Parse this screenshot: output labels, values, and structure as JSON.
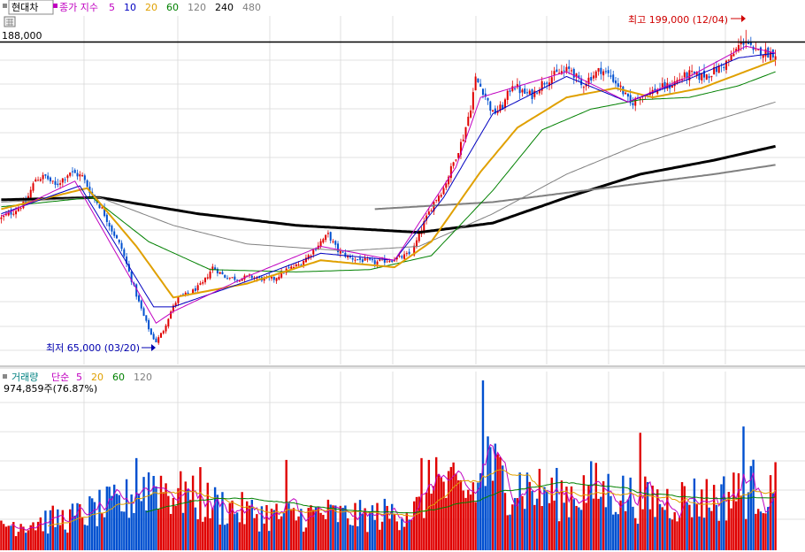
{
  "price_panel": {
    "sym_label": "현대차",
    "ma_title": "종가 지수",
    "ma_periods": [
      {
        "label": "5",
        "color": "#c000c0"
      },
      {
        "label": "10",
        "color": "#0000c0"
      },
      {
        "label": "20",
        "color": "#e0a000"
      },
      {
        "label": "60",
        "color": "#008000"
      },
      {
        "label": "120",
        "color": "#808080"
      },
      {
        "label": "240",
        "color": "#000000"
      },
      {
        "label": "480",
        "color": "#808080"
      }
    ],
    "level_label": "188,000",
    "high_label": "최고 199,000 (12/04)",
    "low_label": "최저 65,000 (03/20)"
  },
  "volume_panel": {
    "title": "거래량",
    "ma_title": "단순",
    "ma_periods": [
      {
        "label": "5",
        "color": "#c000c0"
      },
      {
        "label": "20",
        "color": "#e0a000"
      },
      {
        "label": "60",
        "color": "#008000"
      },
      {
        "label": "120",
        "color": "#808080"
      }
    ],
    "last_label": "974,859주(76.87%)"
  },
  "colors": {
    "up": "#e00000",
    "down": "#0050d0",
    "grid": "#d8d8d8"
  },
  "chart_data": {
    "type": "candlestick",
    "price_level": 188000,
    "high": {
      "value": 199000,
      "date": "12/04"
    },
    "low": {
      "value": 65000,
      "date": "03/20"
    },
    "price_ylim": [
      56000,
      205000
    ],
    "close_path": [
      [
        0,
        118000
      ],
      [
        5,
        121000
      ],
      [
        10,
        125000
      ],
      [
        14,
        135000
      ],
      [
        18,
        136000
      ],
      [
        22,
        132000
      ],
      [
        28,
        138000
      ],
      [
        33,
        136000
      ],
      [
        37,
        128000
      ],
      [
        41,
        122000
      ],
      [
        45,
        113000
      ],
      [
        49,
        105000
      ],
      [
        52,
        95000
      ],
      [
        55,
        85000
      ],
      [
        58,
        76000
      ],
      [
        61,
        68000
      ],
      [
        63,
        65000
      ],
      [
        66,
        70000
      ],
      [
        69,
        78000
      ],
      [
        72,
        84000
      ],
      [
        77,
        86000
      ],
      [
        82,
        90000
      ],
      [
        86,
        97000
      ],
      [
        91,
        93000
      ],
      [
        96,
        92000
      ],
      [
        101,
        93000
      ],
      [
        106,
        92000
      ],
      [
        111,
        92000
      ],
      [
        116,
        96000
      ],
      [
        121,
        98000
      ],
      [
        126,
        103000
      ],
      [
        130,
        108000
      ],
      [
        133,
        111000
      ],
      [
        137,
        104000
      ],
      [
        142,
        101000
      ],
      [
        147,
        100000
      ],
      [
        152,
        99000
      ],
      [
        157,
        100000
      ],
      [
        162,
        101000
      ],
      [
        167,
        103000
      ],
      [
        172,
        116000
      ],
      [
        176,
        125000
      ],
      [
        180,
        131000
      ],
      [
        184,
        142000
      ],
      [
        188,
        153000
      ],
      [
        191,
        166000
      ],
      [
        193,
        178000
      ],
      [
        196,
        173000
      ],
      [
        200,
        163000
      ],
      [
        204,
        166000
      ],
      [
        208,
        176000
      ],
      [
        212,
        172000
      ],
      [
        216,
        171000
      ],
      [
        220,
        176000
      ],
      [
        224,
        179000
      ],
      [
        228,
        181000
      ],
      [
        232,
        182000
      ],
      [
        236,
        175000
      ],
      [
        240,
        179000
      ],
      [
        244,
        182000
      ],
      [
        248,
        179000
      ],
      [
        252,
        174000
      ],
      [
        256,
        167000
      ],
      [
        260,
        171000
      ],
      [
        264,
        172000
      ],
      [
        268,
        174000
      ],
      [
        272,
        175000
      ],
      [
        276,
        178000
      ],
      [
        280,
        180000
      ],
      [
        284,
        179000
      ],
      [
        288,
        180000
      ],
      [
        291,
        182000
      ],
      [
        294,
        184000
      ],
      [
        297,
        187000
      ],
      [
        300,
        192000
      ],
      [
        303,
        195000
      ],
      [
        306,
        189000
      ],
      [
        309,
        190000
      ],
      [
        312,
        189000
      ],
      [
        315,
        189000
      ]
    ],
    "moving_averages": [
      {
        "period": 240,
        "values": [
          [
            0,
            126000
          ],
          [
            40,
            127000
          ],
          [
            80,
            120000
          ],
          [
            120,
            115000
          ],
          [
            170,
            112000
          ],
          [
            200,
            116000
          ],
          [
            230,
            127000
          ],
          [
            260,
            137000
          ],
          [
            290,
            143000
          ],
          [
            315,
            149000
          ]
        ]
      },
      {
        "period": 480,
        "values": [
          [
            152,
            122000
          ],
          [
            200,
            125000
          ],
          [
            230,
            129000
          ],
          [
            260,
            133000
          ],
          [
            290,
            137000
          ],
          [
            315,
            141000
          ]
        ]
      },
      {
        "period": 120,
        "values": [
          [
            0,
            125000
          ],
          [
            40,
            127000
          ],
          [
            70,
            115000
          ],
          [
            100,
            107000
          ],
          [
            140,
            104000
          ],
          [
            170,
            106000
          ],
          [
            200,
            120000
          ],
          [
            230,
            137000
          ],
          [
            260,
            150000
          ],
          [
            290,
            160000
          ],
          [
            315,
            168000
          ]
        ]
      },
      {
        "period": 60,
        "values": [
          [
            0,
            123000
          ],
          [
            37,
            127000
          ],
          [
            60,
            108000
          ],
          [
            85,
            96000
          ],
          [
            120,
            95000
          ],
          [
            150,
            96000
          ],
          [
            175,
            102000
          ],
          [
            200,
            130000
          ],
          [
            220,
            156000
          ],
          [
            240,
            165000
          ],
          [
            260,
            169000
          ],
          [
            280,
            170000
          ],
          [
            300,
            175000
          ],
          [
            315,
            181000
          ]
        ]
      },
      {
        "period": 20,
        "values": [
          [
            0,
            122000
          ],
          [
            35,
            131000
          ],
          [
            55,
            106000
          ],
          [
            70,
            84000
          ],
          [
            100,
            90000
          ],
          [
            130,
            100000
          ],
          [
            160,
            97000
          ],
          [
            175,
            108000
          ],
          [
            195,
            138000
          ],
          [
            210,
            157000
          ],
          [
            230,
            170000
          ],
          [
            250,
            174000
          ],
          [
            265,
            170000
          ],
          [
            285,
            174000
          ],
          [
            300,
            180000
          ],
          [
            315,
            186000
          ]
        ]
      },
      {
        "period": 10,
        "values": [
          [
            0,
            120000
          ],
          [
            32,
            132000
          ],
          [
            62,
            80000
          ],
          [
            70,
            80000
          ],
          [
            100,
            91000
          ],
          [
            130,
            103000
          ],
          [
            160,
            100000
          ],
          [
            180,
            127000
          ],
          [
            200,
            163000
          ],
          [
            230,
            179000
          ],
          [
            255,
            168000
          ],
          [
            280,
            178000
          ],
          [
            300,
            187000
          ],
          [
            315,
            189000
          ]
        ]
      },
      {
        "period": 5,
        "values": [
          [
            0,
            119000
          ],
          [
            30,
            134000
          ],
          [
            63,
            73000
          ],
          [
            70,
            78000
          ],
          [
            100,
            93000
          ],
          [
            130,
            106000
          ],
          [
            160,
            100000
          ],
          [
            185,
            140000
          ],
          [
            195,
            170000
          ],
          [
            230,
            181000
          ],
          [
            255,
            168000
          ],
          [
            280,
            179000
          ],
          [
            303,
            192000
          ],
          [
            315,
            189000
          ]
        ]
      }
    ],
    "volume_max": 1900000,
    "volume_last": 974859,
    "volume_last_ratio_percent": 76.87,
    "volume_profile": [
      [
        0,
        320000
      ],
      [
        10,
        350000
      ],
      [
        20,
        380000
      ],
      [
        30,
        420000
      ],
      [
        40,
        520000
      ],
      [
        50,
        600000
      ],
      [
        57,
        780000
      ],
      [
        63,
        880000
      ],
      [
        70,
        720000
      ],
      [
        80,
        620000
      ],
      [
        90,
        560000
      ],
      [
        100,
        480000
      ],
      [
        110,
        440000
      ],
      [
        120,
        430000
      ],
      [
        130,
        470000
      ],
      [
        140,
        430000
      ],
      [
        150,
        430000
      ],
      [
        160,
        470000
      ],
      [
        170,
        520000
      ],
      [
        175,
        860000
      ],
      [
        182,
        760000
      ],
      [
        190,
        720000
      ],
      [
        196,
        860000
      ],
      [
        200,
        1000000
      ],
      [
        205,
        860000
      ],
      [
        212,
        820000
      ],
      [
        220,
        720000
      ],
      [
        230,
        700000
      ],
      [
        240,
        780000
      ],
      [
        250,
        720000
      ],
      [
        260,
        640000
      ],
      [
        270,
        620000
      ],
      [
        280,
        660000
      ],
      [
        290,
        660000
      ],
      [
        300,
        700000
      ],
      [
        306,
        800000
      ],
      [
        312,
        700000
      ],
      [
        315,
        560000
      ]
    ],
    "volume_spikes": [
      [
        55,
        1020000
      ],
      [
        75,
        760000
      ],
      [
        81,
        920000
      ],
      [
        116,
        1000000
      ],
      [
        171,
        1020000
      ],
      [
        174,
        1000000
      ],
      [
        177,
        1030000
      ],
      [
        196,
        1880000
      ],
      [
        198,
        1260000
      ],
      [
        260,
        1300000
      ],
      [
        302,
        1370000
      ],
      [
        298,
        860000
      ]
    ]
  }
}
